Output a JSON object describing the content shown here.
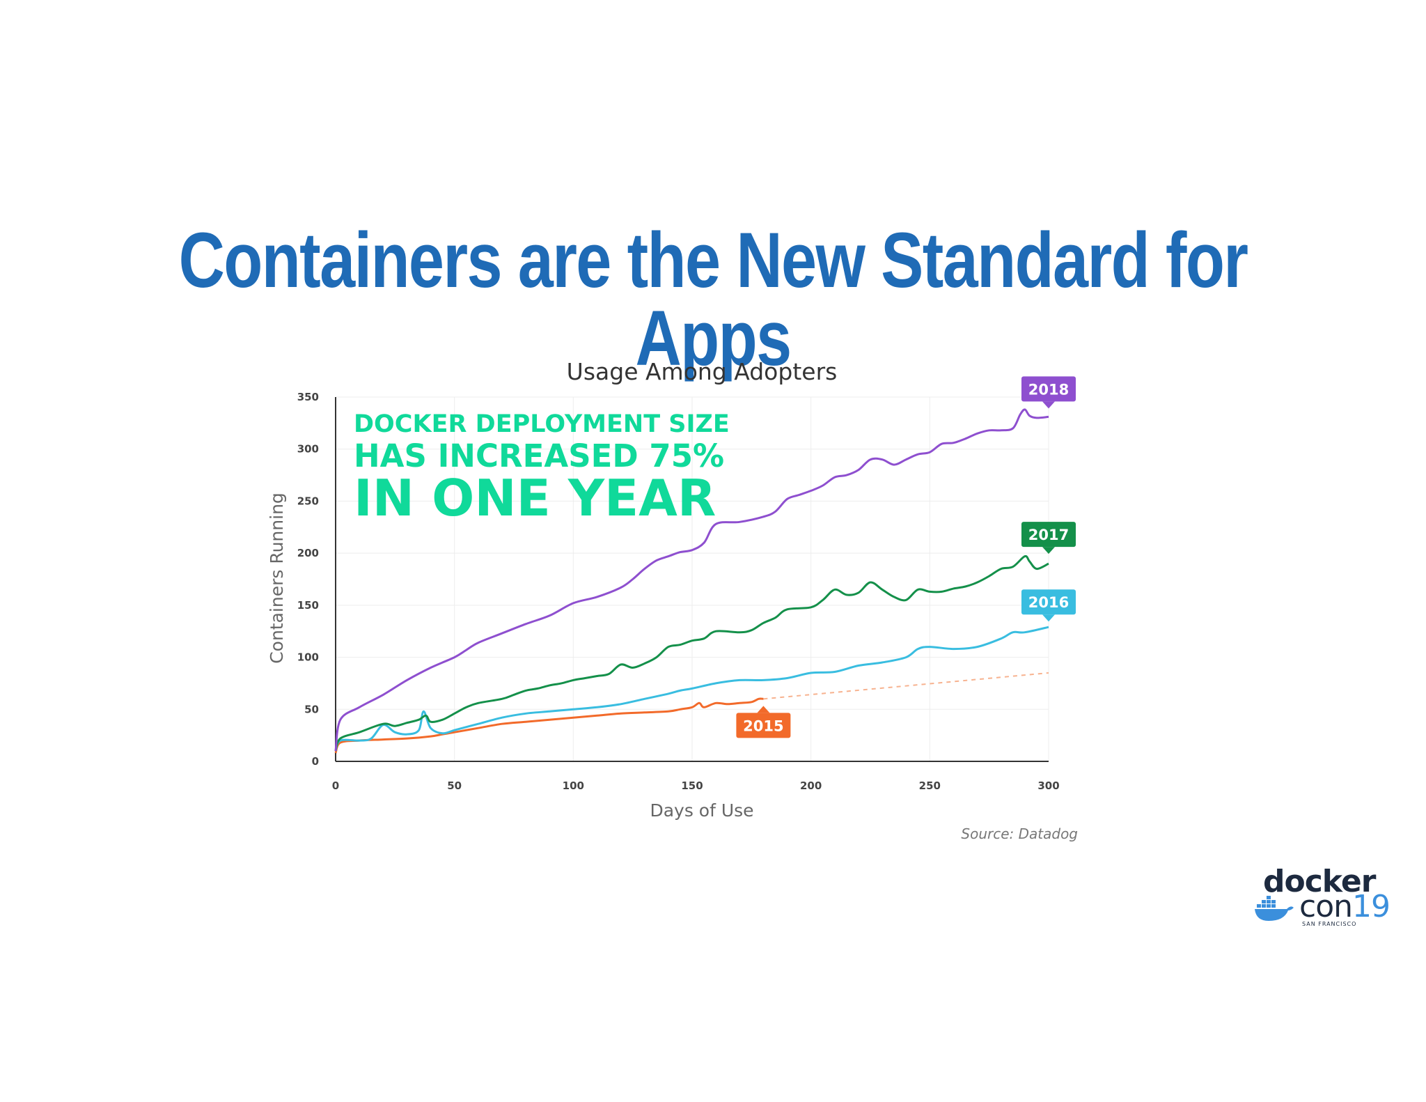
{
  "slide": {
    "title": "Containers are the New Standard for Apps",
    "source": "Source: Datadog"
  },
  "callout": {
    "line1": "DOCKER DEPLOYMENT SIZE",
    "line2": "HAS INCREASED 75%",
    "line3": "IN ONE YEAR"
  },
  "logo": {
    "docker": "docker",
    "con": "con",
    "year": "19",
    "city": "SAN FRANCISCO"
  },
  "colors": {
    "title": "#1f6bb6",
    "callout": "#10d99a",
    "s2018": "#8e4fcf",
    "s2017": "#14904a",
    "s2016": "#39bde0",
    "s2015": "#f26a2a"
  },
  "chart_data": {
    "type": "line",
    "title": "Usage Among Adopters",
    "xlabel": "Days of Use",
    "ylabel": "Containers Running",
    "xlim": [
      0,
      300
    ],
    "ylim": [
      0,
      350
    ],
    "xticks": [
      0,
      50,
      100,
      150,
      200,
      250,
      300
    ],
    "yticks": [
      0,
      50,
      100,
      150,
      200,
      250,
      300,
      350
    ],
    "grid": true,
    "series": [
      {
        "name": "2018",
        "color": "#8e4fcf",
        "x": [
          0,
          2,
          10,
          20,
          30,
          40,
          50,
          55,
          60,
          70,
          80,
          90,
          100,
          110,
          120,
          125,
          130,
          135,
          140,
          145,
          150,
          155,
          160,
          170,
          180,
          185,
          190,
          195,
          200,
          205,
          210,
          215,
          220,
          225,
          230,
          235,
          240,
          245,
          250,
          255,
          260,
          265,
          270,
          275,
          280,
          285,
          288,
          290,
          292,
          295,
          300
        ],
        "values": [
          10,
          40,
          52,
          64,
          78,
          90,
          100,
          107,
          114,
          123,
          132,
          140,
          152,
          158,
          167,
          175,
          185,
          193,
          197,
          201,
          203,
          210,
          228,
          230,
          235,
          240,
          252,
          256,
          260,
          265,
          273,
          275,
          280,
          290,
          290,
          285,
          290,
          295,
          297,
          305,
          306,
          310,
          315,
          318,
          318,
          320,
          333,
          338,
          332,
          330,
          331
        ]
      },
      {
        "name": "2017",
        "color": "#14904a",
        "x": [
          0,
          2,
          10,
          20,
          25,
          30,
          35,
          38,
          40,
          45,
          50,
          55,
          60,
          70,
          75,
          80,
          85,
          90,
          95,
          100,
          105,
          110,
          115,
          120,
          125,
          130,
          135,
          140,
          145,
          150,
          155,
          160,
          170,
          175,
          180,
          185,
          190,
          200,
          205,
          210,
          215,
          220,
          225,
          230,
          235,
          240,
          245,
          250,
          255,
          260,
          265,
          270,
          275,
          280,
          285,
          290,
          292,
          295,
          300
        ],
        "values": [
          10,
          22,
          28,
          36,
          34,
          37,
          40,
          44,
          38,
          40,
          46,
          52,
          56,
          60,
          64,
          68,
          70,
          73,
          75,
          78,
          80,
          82,
          84,
          93,
          90,
          94,
          100,
          110,
          112,
          116,
          118,
          125,
          124,
          126,
          133,
          138,
          146,
          148,
          155,
          165,
          160,
          162,
          172,
          165,
          158,
          155,
          165,
          163,
          163,
          166,
          168,
          172,
          178,
          185,
          187,
          197,
          192,
          185,
          190
        ]
      },
      {
        "name": "2016",
        "color": "#39bde0",
        "x": [
          0,
          2,
          10,
          15,
          20,
          25,
          30,
          35,
          37,
          40,
          45,
          50,
          55,
          60,
          70,
          80,
          90,
          100,
          110,
          120,
          130,
          140,
          145,
          150,
          160,
          170,
          180,
          190,
          200,
          210,
          220,
          230,
          240,
          245,
          250,
          260,
          270,
          280,
          285,
          290,
          300
        ],
        "values": [
          10,
          20,
          20,
          22,
          35,
          28,
          26,
          30,
          48,
          32,
          27,
          30,
          33,
          36,
          42,
          46,
          48,
          50,
          52,
          55,
          60,
          65,
          68,
          70,
          75,
          78,
          78,
          80,
          85,
          86,
          92,
          95,
          100,
          108,
          110,
          108,
          110,
          118,
          124,
          124,
          129
        ]
      },
      {
        "name": "2015",
        "color": "#f26a2a",
        "x": [
          0,
          2,
          10,
          20,
          30,
          40,
          45,
          50,
          60,
          70,
          80,
          90,
          100,
          110,
          120,
          130,
          140,
          145,
          150,
          153,
          155,
          160,
          165,
          170,
          175,
          178,
          180
        ],
        "values": [
          8,
          18,
          20,
          21,
          22,
          24,
          26,
          28,
          32,
          36,
          38,
          40,
          42,
          44,
          46,
          47,
          48,
          50,
          52,
          56,
          52,
          56,
          55,
          56,
          57,
          60,
          60
        ]
      }
    ],
    "projection": {
      "series": "2015",
      "x": [
        180,
        300
      ],
      "values": [
        60,
        85
      ]
    }
  }
}
